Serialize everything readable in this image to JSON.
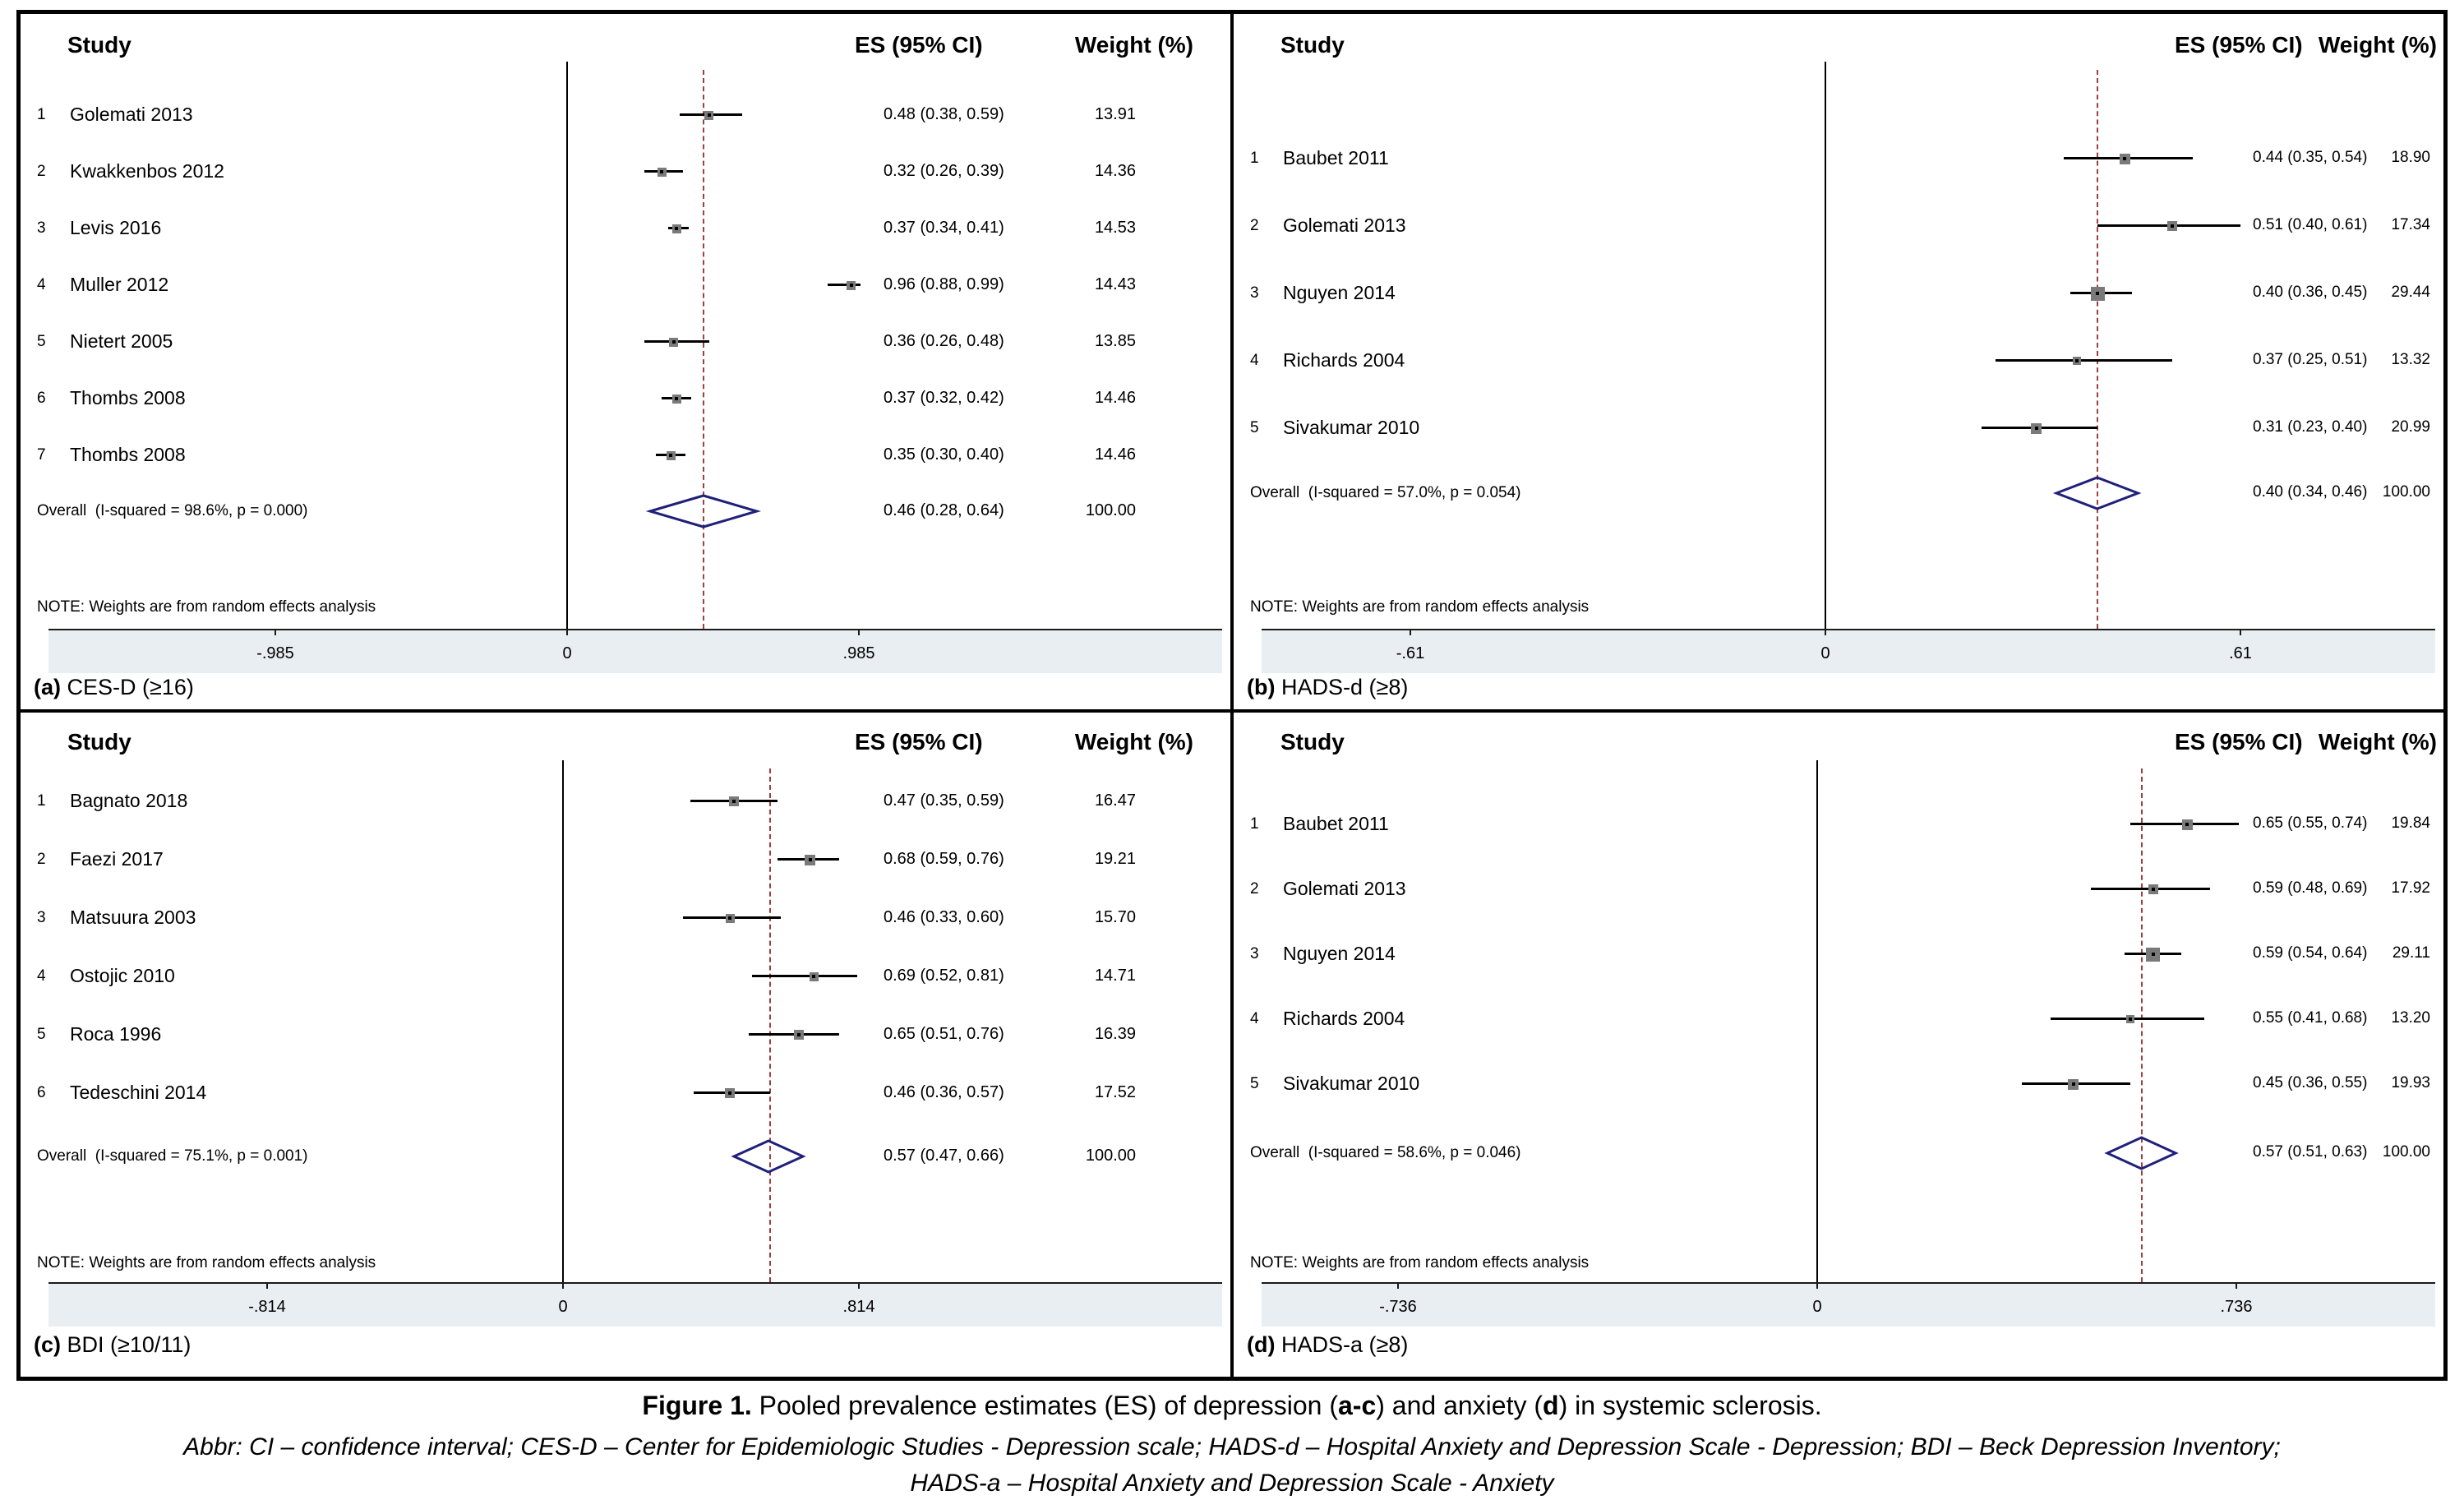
{
  "figure_caption": {
    "bold_prefix": "Figure 1.",
    "text_1": " Pooled prevalence estimates (ES) of depression (",
    "bold_a": "a-c",
    "text_2": ") and anxiety (",
    "bold_b": "d",
    "text_3": ") in systemic sclerosis."
  },
  "abbreviations": {
    "line1": "Abbr: CI – confidence interval; CES-D – Center for Epidemiologic Studies - Depression scale; HADS-d – Hospital Anxiety and Depression Scale - Depression; BDI – Beck Depression Inventory;",
    "line2": "HADS-a – Hospital Anxiety and Depression Scale - Anxiety"
  },
  "colors": {
    "axis_strip": "#e9eef2",
    "overall_dashed_line": "#9e3f3f",
    "diamond_outline": "#20207a",
    "marker_fill": "#7a7a7a",
    "ci_line": "#000000"
  },
  "chart_data": [
    {
      "type": "forest",
      "panel_id": "a",
      "caption_tag": "(a)",
      "caption_label": "CES-D (≥16)",
      "headers": {
        "study": "Study",
        "es": "ES (95% CI)",
        "weight": "Weight (%)"
      },
      "note": "NOTE: Weights are from random effects analysis",
      "x_axis": {
        "ticks": [
          -0.985,
          0,
          0.985
        ],
        "tick_labels": [
          "-.985",
          "0",
          ".985"
        ]
      },
      "studies": [
        {
          "n": "1",
          "name": "Golemati 2013",
          "es": 0.48,
          "ci_low": 0.38,
          "ci_high": 0.59,
          "es_text": "0.48 (0.38, 0.59)",
          "weight": 13.91,
          "weight_text": "13.91"
        },
        {
          "n": "2",
          "name": "Kwakkenbos 2012",
          "es": 0.32,
          "ci_low": 0.26,
          "ci_high": 0.39,
          "es_text": "0.32 (0.26, 0.39)",
          "weight": 14.36,
          "weight_text": "14.36"
        },
        {
          "n": "3",
          "name": "Levis 2016",
          "es": 0.37,
          "ci_low": 0.34,
          "ci_high": 0.41,
          "es_text": "0.37 (0.34, 0.41)",
          "weight": 14.53,
          "weight_text": "14.53"
        },
        {
          "n": "4",
          "name": "Muller 2012",
          "es": 0.96,
          "ci_low": 0.88,
          "ci_high": 0.99,
          "es_text": "0.96 (0.88, 0.99)",
          "weight": 14.43,
          "weight_text": "14.43"
        },
        {
          "n": "5",
          "name": "Nietert 2005",
          "es": 0.36,
          "ci_low": 0.26,
          "ci_high": 0.48,
          "es_text": "0.36 (0.26, 0.48)",
          "weight": 13.85,
          "weight_text": "13.85"
        },
        {
          "n": "6",
          "name": "Thombs 2008",
          "es": 0.37,
          "ci_low": 0.32,
          "ci_high": 0.42,
          "es_text": "0.37 (0.32, 0.42)",
          "weight": 14.46,
          "weight_text": "14.46"
        },
        {
          "n": "7",
          "name": "Thombs 2008",
          "es": 0.35,
          "ci_low": 0.3,
          "ci_high": 0.4,
          "es_text": "0.35 (0.30, 0.40)",
          "weight": 14.46,
          "weight_text": "14.46"
        }
      ],
      "overall": {
        "label": "Overall  (I-squared = 98.6%, p = 0.000)",
        "es": 0.46,
        "ci_low": 0.28,
        "ci_high": 0.64,
        "es_text": "0.46 (0.28, 0.64)",
        "weight_text": "100.00"
      }
    },
    {
      "type": "forest",
      "panel_id": "b",
      "caption_tag": "(b)",
      "caption_label": "HADS-d (≥8)",
      "headers": {
        "study": "Study",
        "es": "ES (95% CI)",
        "weight": "Weight (%)"
      },
      "note": "NOTE: Weights are from random effects analysis",
      "x_axis": {
        "ticks": [
          -0.61,
          0,
          0.61
        ],
        "tick_labels": [
          "-.61",
          "0",
          ".61"
        ]
      },
      "studies": [
        {
          "n": "1",
          "name": "Baubet 2011",
          "es": 0.44,
          "ci_low": 0.35,
          "ci_high": 0.54,
          "es_text": "0.44 (0.35, 0.54)",
          "weight": 18.9,
          "weight_text": "18.90"
        },
        {
          "n": "2",
          "name": "Golemati 2013",
          "es": 0.51,
          "ci_low": 0.4,
          "ci_high": 0.61,
          "es_text": "0.51 (0.40, 0.61)",
          "weight": 17.34,
          "weight_text": "17.34"
        },
        {
          "n": "3",
          "name": "Nguyen 2014",
          "es": 0.4,
          "ci_low": 0.36,
          "ci_high": 0.45,
          "es_text": "0.40 (0.36, 0.45)",
          "weight": 29.44,
          "weight_text": "29.44"
        },
        {
          "n": "4",
          "name": "Richards 2004",
          "es": 0.37,
          "ci_low": 0.25,
          "ci_high": 0.51,
          "es_text": "0.37 (0.25, 0.51)",
          "weight": 13.32,
          "weight_text": "13.32"
        },
        {
          "n": "5",
          "name": "Sivakumar 2010",
          "es": 0.31,
          "ci_low": 0.23,
          "ci_high": 0.4,
          "es_text": "0.31 (0.23, 0.40)",
          "weight": 20.99,
          "weight_text": "20.99"
        }
      ],
      "overall": {
        "label": "Overall  (I-squared = 57.0%, p = 0.054)",
        "es": 0.4,
        "ci_low": 0.34,
        "ci_high": 0.46,
        "es_text": "0.40 (0.34, 0.46)",
        "weight_text": "100.00"
      }
    },
    {
      "type": "forest",
      "panel_id": "c",
      "caption_tag": "(c)",
      "caption_label": "BDI (≥10/11)",
      "headers": {
        "study": "Study",
        "es": "ES (95% CI)",
        "weight": "Weight (%)"
      },
      "note": "NOTE: Weights are from random effects analysis",
      "x_axis": {
        "ticks": [
          -0.814,
          0,
          0.814
        ],
        "tick_labels": [
          "-.814",
          "0",
          ".814"
        ]
      },
      "studies": [
        {
          "n": "1",
          "name": "Bagnato 2018",
          "es": 0.47,
          "ci_low": 0.35,
          "ci_high": 0.59,
          "es_text": "0.47 (0.35, 0.59)",
          "weight": 16.47,
          "weight_text": "16.47"
        },
        {
          "n": "2",
          "name": "Faezi 2017",
          "es": 0.68,
          "ci_low": 0.59,
          "ci_high": 0.76,
          "es_text": "0.68 (0.59, 0.76)",
          "weight": 19.21,
          "weight_text": "19.21"
        },
        {
          "n": "3",
          "name": "Matsuura 2003",
          "es": 0.46,
          "ci_low": 0.33,
          "ci_high": 0.6,
          "es_text": "0.46 (0.33, 0.60)",
          "weight": 15.7,
          "weight_text": "15.70"
        },
        {
          "n": "4",
          "name": "Ostojic 2010",
          "es": 0.69,
          "ci_low": 0.52,
          "ci_high": 0.81,
          "es_text": "0.69 (0.52, 0.81)",
          "weight": 14.71,
          "weight_text": "14.71"
        },
        {
          "n": "5",
          "name": "Roca 1996",
          "es": 0.65,
          "ci_low": 0.51,
          "ci_high": 0.76,
          "es_text": "0.65 (0.51, 0.76)",
          "weight": 16.39,
          "weight_text": "16.39"
        },
        {
          "n": "6",
          "name": "Tedeschini 2014",
          "es": 0.46,
          "ci_low": 0.36,
          "ci_high": 0.57,
          "es_text": "0.46 (0.36, 0.57)",
          "weight": 17.52,
          "weight_text": "17.52"
        }
      ],
      "overall": {
        "label": "Overall  (I-squared = 75.1%, p = 0.001)",
        "es": 0.57,
        "ci_low": 0.47,
        "ci_high": 0.66,
        "es_text": "0.57 (0.47, 0.66)",
        "weight_text": "100.00"
      }
    },
    {
      "type": "forest",
      "panel_id": "d",
      "caption_tag": "(d)",
      "caption_label": "HADS-a (≥8)",
      "headers": {
        "study": "Study",
        "es": "ES (95% CI)",
        "weight": "Weight (%)"
      },
      "note": "NOTE: Weights are from random effects analysis",
      "x_axis": {
        "ticks": [
          -0.736,
          0,
          0.736
        ],
        "tick_labels": [
          "-.736",
          "0",
          ".736"
        ]
      },
      "studies": [
        {
          "n": "1",
          "name": "Baubet 2011",
          "es": 0.65,
          "ci_low": 0.55,
          "ci_high": 0.74,
          "es_text": "0.65 (0.55, 0.74)",
          "weight": 19.84,
          "weight_text": "19.84"
        },
        {
          "n": "2",
          "name": "Golemati 2013",
          "es": 0.59,
          "ci_low": 0.48,
          "ci_high": 0.69,
          "es_text": "0.59 (0.48, 0.69)",
          "weight": 17.92,
          "weight_text": "17.92"
        },
        {
          "n": "3",
          "name": "Nguyen 2014",
          "es": 0.59,
          "ci_low": 0.54,
          "ci_high": 0.64,
          "es_text": "0.59 (0.54, 0.64)",
          "weight": 29.11,
          "weight_text": "29.11"
        },
        {
          "n": "4",
          "name": "Richards 2004",
          "es": 0.55,
          "ci_low": 0.41,
          "ci_high": 0.68,
          "es_text": "0.55 (0.41, 0.68)",
          "weight": 13.2,
          "weight_text": "13.20"
        },
        {
          "n": "5",
          "name": "Sivakumar 2010",
          "es": 0.45,
          "ci_low": 0.36,
          "ci_high": 0.55,
          "es_text": "0.45 (0.36, 0.55)",
          "weight": 19.93,
          "weight_text": "19.93"
        }
      ],
      "overall": {
        "label": "Overall  (I-squared = 58.6%, p = 0.046)",
        "es": 0.57,
        "ci_low": 0.51,
        "ci_high": 0.63,
        "es_text": "0.57 (0.51, 0.63)",
        "weight_text": "100.00"
      }
    }
  ]
}
